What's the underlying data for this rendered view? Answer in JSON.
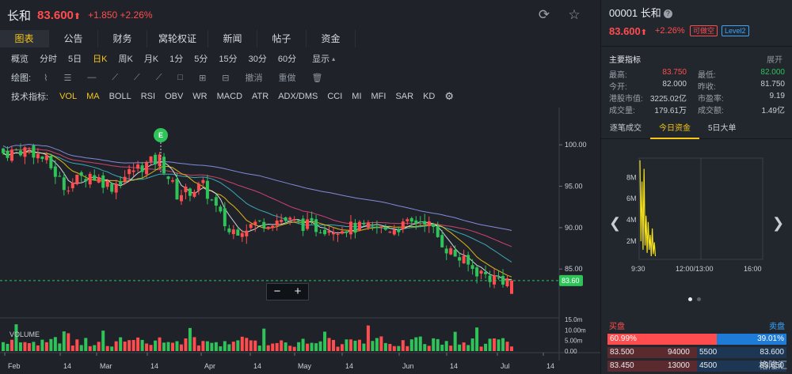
{
  "stock": {
    "name": "长和",
    "price": "83.600",
    "change": "+1.850 +2.26%"
  },
  "tabs": [
    "图表",
    "公告",
    "财务",
    "窝轮权证",
    "新闻",
    "帖子",
    "资金"
  ],
  "periods": [
    "概览",
    "分时",
    "5日",
    "日K",
    "周K",
    "月K",
    "1分",
    "5分",
    "15分",
    "30分",
    "60分",
    "显示"
  ],
  "active_period": "日K",
  "draw": {
    "label": "绘图:",
    "undo": "撤消",
    "redo": "重做"
  },
  "indicators": {
    "label": "技术指标:",
    "items": [
      "VOL",
      "MA",
      "BOLL",
      "RSI",
      "OBV",
      "WR",
      "MACD",
      "ATR",
      "ADX/DMS",
      "CCI",
      "MI",
      "MFI",
      "SAR",
      "KD"
    ],
    "on": [
      "VOL",
      "MA"
    ]
  },
  "chart_data": {
    "type": "candlestick",
    "price_axis": {
      "ticks": [
        "100.00",
        "95.00",
        "90.00",
        "85.00"
      ],
      "values": [
        100,
        95,
        90,
        85
      ],
      "range": [
        79.2,
        104.5
      ]
    },
    "current_price_label": "83.60",
    "current_price": 83.6,
    "event_marker": "E",
    "volume_label": "VOLUME",
    "volume_axis": {
      "ticks": [
        "15.0m",
        "10.00m",
        "5.00m",
        "0.00"
      ],
      "values": [
        15,
        10,
        5,
        0
      ],
      "range": [
        0,
        15
      ]
    },
    "x_ticks": [
      "Feb",
      "14",
      "Mar",
      "14",
      "Apr",
      "14",
      "May",
      "14",
      "Jun",
      "14",
      "Jul",
      "14"
    ],
    "colors": {
      "up": "#ff4d4f",
      "down": "#2fc35a",
      "ma5": "#e8ebef",
      "ma10": "#f5c518",
      "ma20": "#3fb6c8",
      "ma30": "#e0467a",
      "ma60": "#8f95f0"
    }
  },
  "zoom": {
    "minus": "−",
    "plus": "+"
  },
  "right": {
    "code_name": "00001 长和",
    "price": "83.600",
    "pct": "+2.26%",
    "badge_short": "可做空",
    "badge_level": "Level2",
    "main_indicators": "主要指标",
    "expand": "展开",
    "stats": [
      {
        "k1": "最高:",
        "v1": "83.750",
        "k2": "最低:",
        "v2": "82.000"
      },
      {
        "k1": "今开:",
        "v1": "82.000",
        "k2": "昨收:",
        "v2": "81.750"
      },
      {
        "k1": "港股市值:",
        "v1": "3225.02亿",
        "k2": "市盈率:",
        "v2": "9.19"
      },
      {
        "k1": "成交量:",
        "v1": "179.61万",
        "k2": "成交额:",
        "v2": "1.49亿"
      }
    ],
    "subtabs": [
      "逐笔成交",
      "今日资金",
      "5日大单"
    ],
    "active_subtab": "今日资金",
    "mini_chart": {
      "y_ticks": [
        "8M",
        "6M",
        "4M",
        "2M"
      ],
      "y_values": [
        8,
        6,
        4,
        2
      ],
      "y_range": [
        0.3,
        9.8
      ],
      "x_ticks": [
        "9:30",
        "12:00/13:00",
        "16:00"
      ]
    },
    "orderbook": {
      "buy_label": "买盘",
      "sell_label": "卖盘",
      "buy_pct": "60.99%",
      "sell_pct": "39.01%",
      "buy_ratio": 0.6099,
      "rows": [
        {
          "bid": "83.500",
          "bid_vol": "94000",
          "ask_vol": "5500",
          "ask": "83.600"
        },
        {
          "bid": "83.450",
          "bid_vol": "13000",
          "ask_vol": "4500",
          "ask": "83.650"
        }
      ]
    },
    "watermark": "格隆汇"
  }
}
